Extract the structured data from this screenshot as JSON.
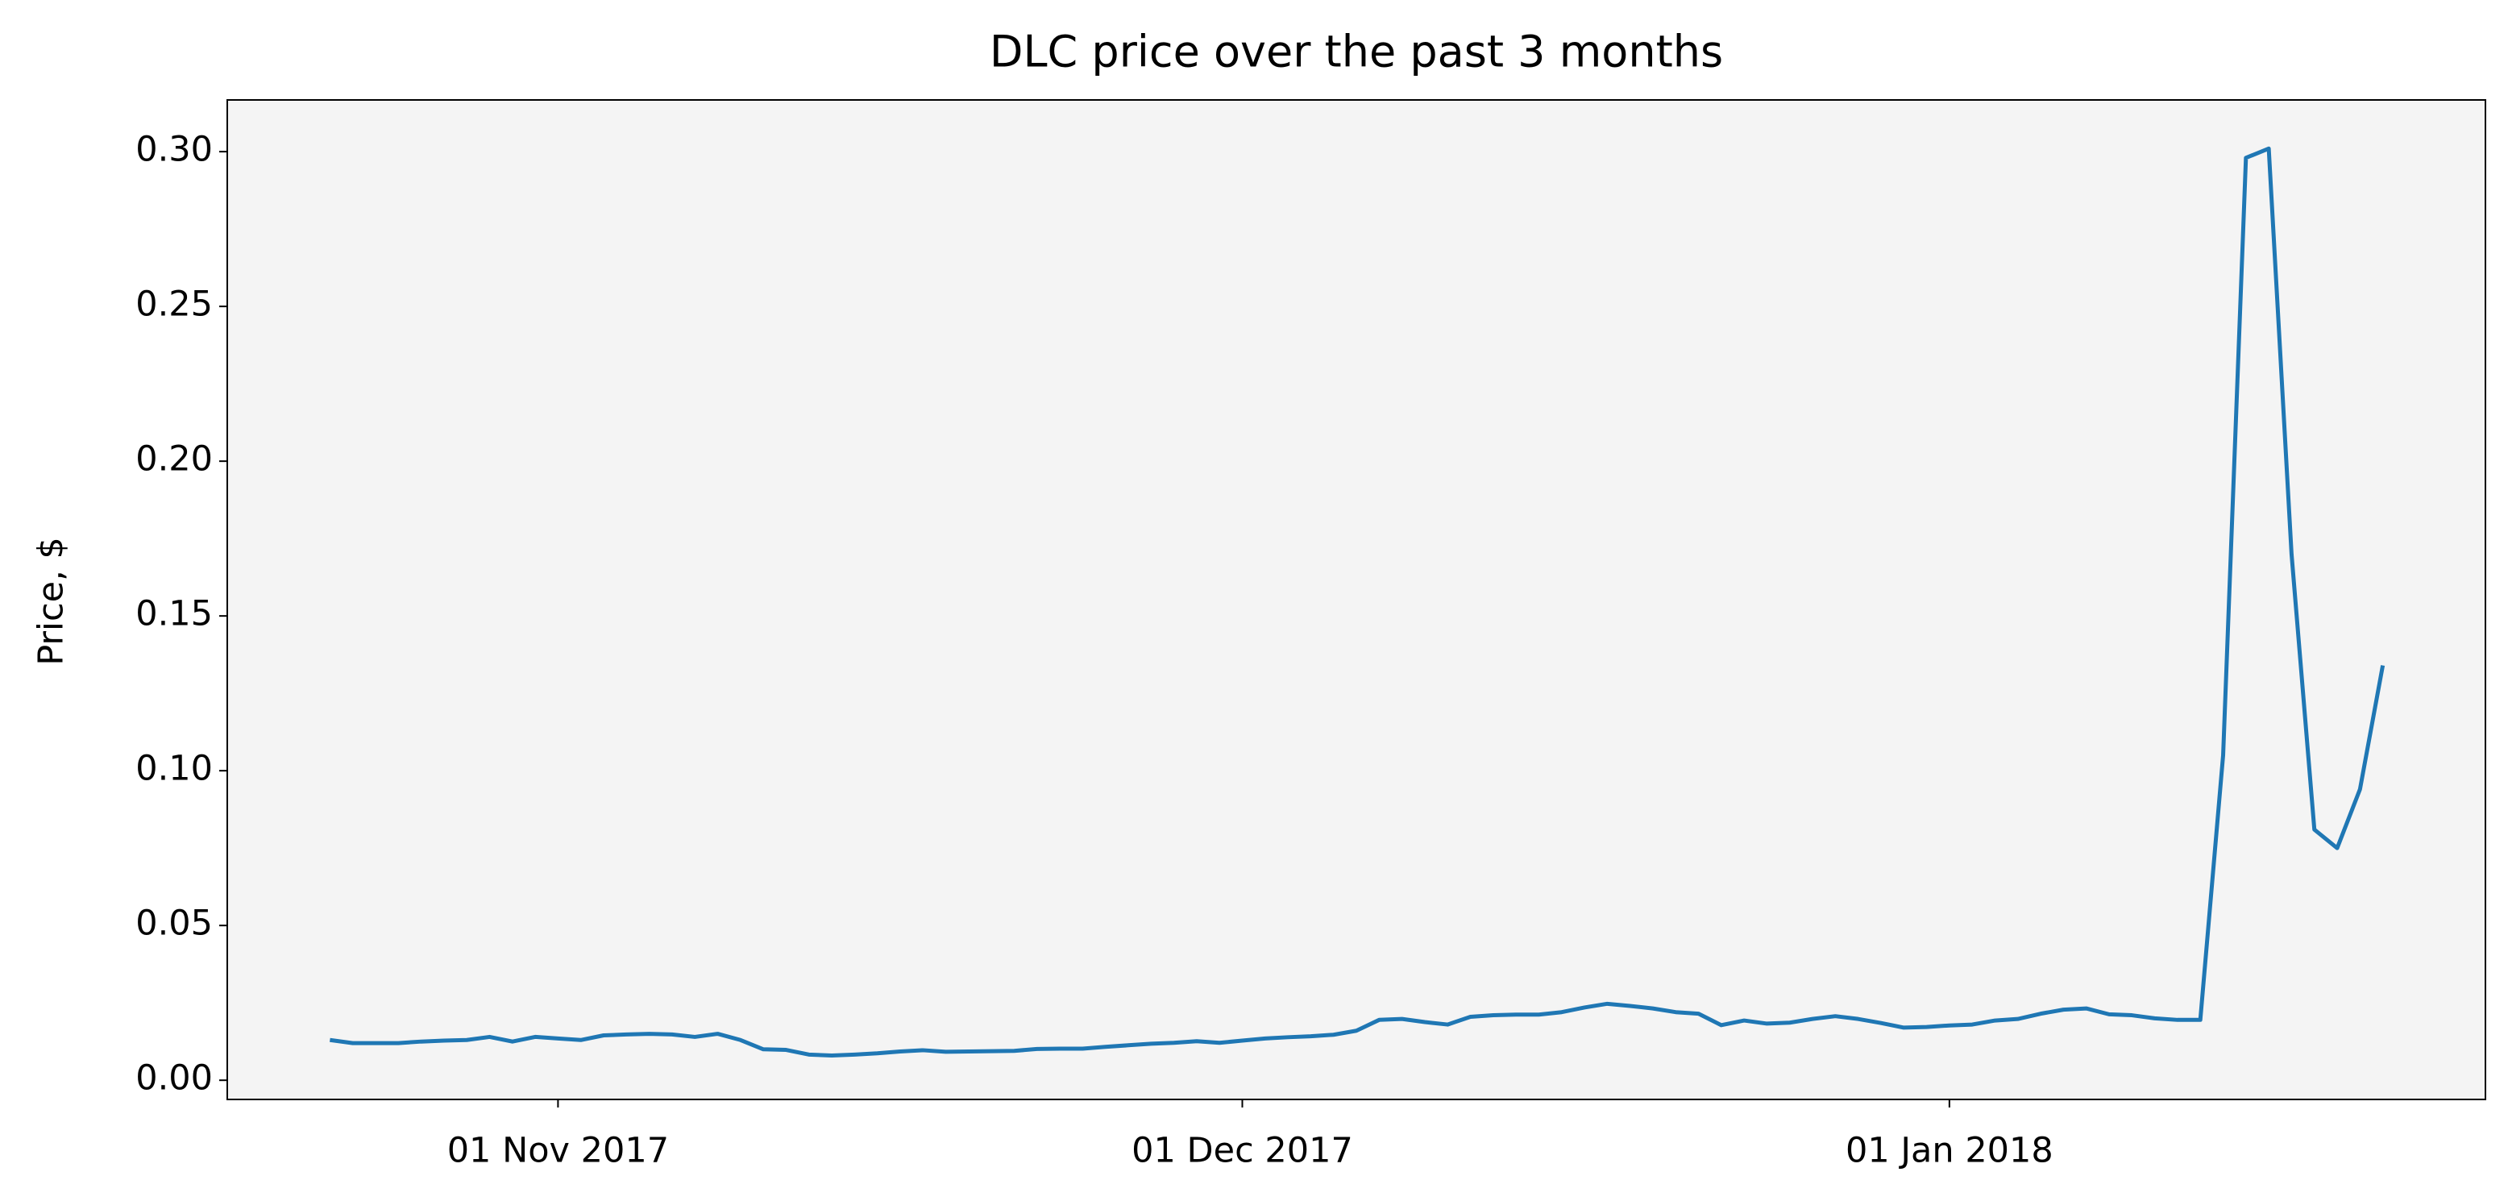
{
  "chart_data": {
    "type": "line",
    "title": "DLC price over the past 3 months",
    "y_label": "Price, $",
    "x": [
      "2017-10-22",
      "2017-10-23",
      "2017-10-24",
      "2017-10-25",
      "2017-10-26",
      "2017-10-27",
      "2017-10-28",
      "2017-10-29",
      "2017-10-30",
      "2017-10-31",
      "2017-11-01",
      "2017-11-02",
      "2017-11-03",
      "2017-11-04",
      "2017-11-05",
      "2017-11-06",
      "2017-11-07",
      "2017-11-08",
      "2017-11-09",
      "2017-11-10",
      "2017-11-11",
      "2017-11-12",
      "2017-11-13",
      "2017-11-14",
      "2017-11-15",
      "2017-11-16",
      "2017-11-17",
      "2017-11-18",
      "2017-11-19",
      "2017-11-20",
      "2017-11-21",
      "2017-11-22",
      "2017-11-23",
      "2017-11-24",
      "2017-11-25",
      "2017-11-26",
      "2017-11-27",
      "2017-11-28",
      "2017-11-29",
      "2017-11-30",
      "2017-12-01",
      "2017-12-02",
      "2017-12-03",
      "2017-12-04",
      "2017-12-05",
      "2017-12-06",
      "2017-12-07",
      "2017-12-08",
      "2017-12-09",
      "2017-12-10",
      "2017-12-11",
      "2017-12-12",
      "2017-12-13",
      "2017-12-14",
      "2017-12-15",
      "2017-12-16",
      "2017-12-17",
      "2017-12-18",
      "2017-12-19",
      "2017-12-20",
      "2017-12-21",
      "2017-12-22",
      "2017-12-23",
      "2017-12-24",
      "2017-12-25",
      "2017-12-26",
      "2017-12-27",
      "2017-12-28",
      "2017-12-29",
      "2017-12-30",
      "2017-12-31",
      "2018-01-01",
      "2018-01-02",
      "2018-01-03",
      "2018-01-04",
      "2018-01-05",
      "2018-01-06",
      "2018-01-07",
      "2018-01-08",
      "2018-01-09",
      "2018-01-10",
      "2018-01-11",
      "2018-01-12",
      "2018-01-13",
      "2018-01-14",
      "2018-01-15",
      "2018-01-16",
      "2018-01-17",
      "2018-01-18",
      "2018-01-19",
      "2018-01-20"
    ],
    "series": [
      {
        "name": "DLC",
        "color": "#1f77b4",
        "values": [
          0.013,
          0.012,
          0.012,
          0.012,
          0.0125,
          0.0128,
          0.013,
          0.014,
          0.0125,
          0.014,
          0.0135,
          0.013,
          0.0145,
          0.0148,
          0.015,
          0.0148,
          0.014,
          0.015,
          0.013,
          0.01,
          0.0098,
          0.0083,
          0.008,
          0.0083,
          0.0087,
          0.0093,
          0.0097,
          0.0092,
          0.0093,
          0.0094,
          0.0095,
          0.0101,
          0.0102,
          0.0102,
          0.0108,
          0.0113,
          0.0118,
          0.0121,
          0.0126,
          0.0121,
          0.0128,
          0.0135,
          0.0139,
          0.0142,
          0.0147,
          0.016,
          0.0195,
          0.0198,
          0.0188,
          0.018,
          0.0205,
          0.021,
          0.0212,
          0.0212,
          0.022,
          0.0235,
          0.0247,
          0.024,
          0.0232,
          0.022,
          0.0215,
          0.0178,
          0.0193,
          0.0183,
          0.0186,
          0.0198,
          0.0207,
          0.0198,
          0.0185,
          0.017,
          0.0172,
          0.0177,
          0.018,
          0.0193,
          0.0198,
          0.0215,
          0.0228,
          0.0232,
          0.0213,
          0.021,
          0.02,
          0.0195,
          0.0195,
          0.105,
          0.298,
          0.301,
          0.17,
          0.081,
          0.075,
          0.094,
          0.134
        ]
      }
    ],
    "xlim": [
      "2017-10-17T12:00Z",
      "2018-01-24T12:00Z"
    ],
    "xticks": [
      {
        "value": "2017-11-01",
        "label": "01 Nov 2017"
      },
      {
        "value": "2017-12-01",
        "label": "01 Dec 2017"
      },
      {
        "value": "2018-01-01",
        "label": "01 Jan 2018"
      }
    ],
    "ylim": [
      -0.0062,
      0.3167
    ],
    "yticks": [
      {
        "value": 0,
        "label": "0.00"
      },
      0.05,
      {
        "value": 0.1,
        "label": "0.10"
      },
      0.15,
      {
        "value": 0.2,
        "label": "0.20"
      },
      0.25,
      {
        "value": 0.3,
        "label": "0.30"
      }
    ],
    "grid": false,
    "plot_background": "#f4f4f4"
  }
}
